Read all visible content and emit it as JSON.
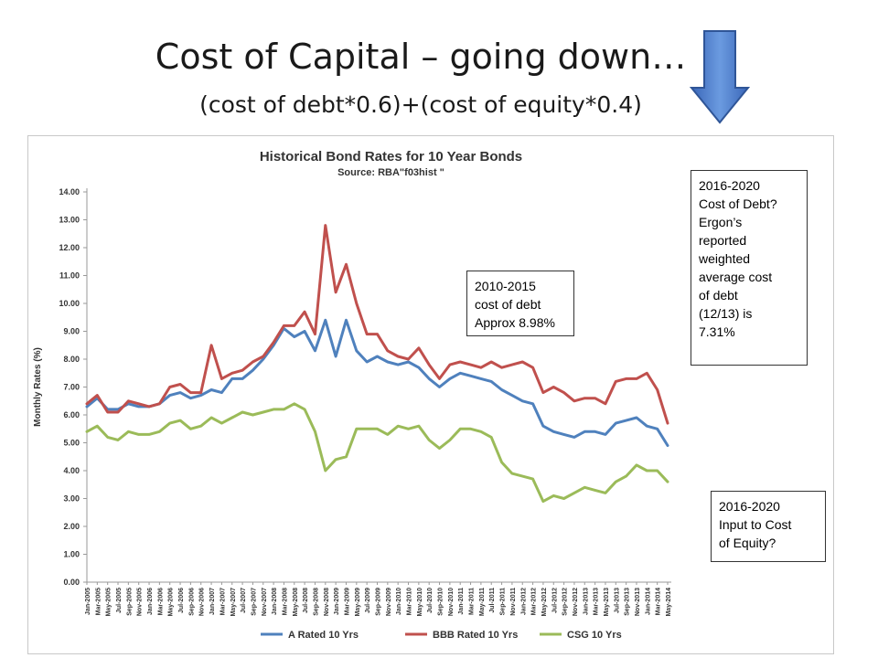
{
  "slide": {
    "title": "Cost of Capital – going down…",
    "subtitle": "(cost of debt*0.6)+(cost  of equity*0.4)"
  },
  "colors": {
    "a_rated": "#4f81bd",
    "bbb_rated": "#c0504d",
    "csg": "#9bbb59",
    "arrow": "#4472c4"
  },
  "icons": {
    "arrow": "down-arrow-icon"
  },
  "annotations": {
    "debt": "2010-2015\ncost of debt\nApprox 8.98%",
    "ergon": "2016-2020\nCost of Debt?\nErgon’s\nreported\nweighted\naverage cost\nof debt\n(12/13) is\n7.31%",
    "equity": "2016-2020\nInput to Cost\nof Equity?"
  },
  "chart_data": {
    "type": "line",
    "title": "Historical Bond Rates for 10 Year Bonds",
    "subtitle": "Source: RBA\"f03hist \"",
    "xlabel": "",
    "ylabel": "Monthly Rates (%)",
    "ylim": [
      0,
      14
    ],
    "y_ticks": [
      "0.00",
      "1.00",
      "2.00",
      "3.00",
      "4.00",
      "5.00",
      "6.00",
      "7.00",
      "8.00",
      "9.00",
      "10.00",
      "11.00",
      "12.00",
      "13.00",
      "14.00"
    ],
    "grid": false,
    "legend": "bottom",
    "x": [
      "Jan-2005",
      "Mar-2005",
      "May-2005",
      "Jul-2005",
      "Sep-2005",
      "Nov-2005",
      "Jan-2006",
      "Mar-2006",
      "May-2006",
      "Jul-2006",
      "Sep-2006",
      "Nov-2006",
      "Jan-2007",
      "Mar-2007",
      "May-2007",
      "Jul-2007",
      "Sep-2007",
      "Nov-2007",
      "Jan-2008",
      "Mar-2008",
      "May-2008",
      "Jul-2008",
      "Sep-2008",
      "Nov-2008",
      "Jan-2009",
      "Mar-2009",
      "May-2009",
      "Jul-2009",
      "Sep-2009",
      "Nov-2009",
      "Jan-2010",
      "Mar-2010",
      "May-2010",
      "Jul-2010",
      "Sep-2010",
      "Nov-2010",
      "Jan-2011",
      "Mar-2011",
      "May-2011",
      "Jul-2011",
      "Sep-2011",
      "Nov-2011",
      "Jan-2012",
      "Mar-2012",
      "May-2012",
      "Jul-2012",
      "Sep-2012",
      "Nov-2012",
      "Jan-2013",
      "Mar-2013",
      "May-2013",
      "Jul-2013",
      "Sep-2013",
      "Nov-2013",
      "Jan-2014",
      "Mar-2014",
      "May-2014"
    ],
    "series": [
      {
        "name": "A Rated 10 Yrs",
        "color": "#4f81bd",
        "values": [
          6.3,
          6.6,
          6.2,
          6.2,
          6.4,
          6.3,
          6.3,
          6.4,
          6.7,
          6.8,
          6.6,
          6.7,
          6.9,
          6.8,
          7.3,
          7.3,
          7.6,
          8.0,
          8.5,
          9.1,
          8.8,
          9.0,
          8.3,
          9.4,
          8.1,
          9.4,
          8.3,
          7.9,
          8.1,
          7.9,
          7.8,
          7.9,
          7.7,
          7.3,
          7.0,
          7.3,
          7.5,
          7.4,
          7.3,
          7.2,
          6.9,
          6.7,
          6.5,
          6.4,
          5.6,
          5.4,
          5.3,
          5.2,
          5.4,
          5.4,
          5.3,
          5.7,
          5.8,
          5.9,
          5.6,
          5.5,
          4.9
        ]
      },
      {
        "name": "BBB Rated 10 Yrs",
        "color": "#c0504d",
        "values": [
          6.4,
          6.7,
          6.1,
          6.1,
          6.5,
          6.4,
          6.3,
          6.4,
          7.0,
          7.1,
          6.8,
          6.8,
          8.5,
          7.3,
          7.5,
          7.6,
          7.9,
          8.1,
          8.6,
          9.2,
          9.2,
          9.7,
          8.9,
          12.8,
          10.4,
          11.4,
          10.0,
          8.9,
          8.9,
          8.3,
          8.1,
          8.0,
          8.4,
          7.8,
          7.3,
          7.8,
          7.9,
          7.8,
          7.7,
          7.9,
          7.7,
          7.8,
          7.9,
          7.7,
          6.8,
          7.0,
          6.8,
          6.5,
          6.6,
          6.6,
          6.4,
          7.2,
          7.3,
          7.3,
          7.5,
          6.9,
          5.7
        ]
      },
      {
        "name": "CSG 10 Yrs",
        "color": "#9bbb59",
        "values": [
          5.4,
          5.6,
          5.2,
          5.1,
          5.4,
          5.3,
          5.3,
          5.4,
          5.7,
          5.8,
          5.5,
          5.6,
          5.9,
          5.7,
          5.9,
          6.1,
          6.0,
          6.1,
          6.2,
          6.2,
          6.4,
          6.2,
          5.4,
          4.0,
          4.4,
          4.5,
          5.5,
          5.5,
          5.5,
          5.3,
          5.6,
          5.5,
          5.6,
          5.1,
          4.8,
          5.1,
          5.5,
          5.5,
          5.4,
          5.2,
          4.3,
          3.9,
          3.8,
          3.7,
          2.9,
          3.1,
          3.0,
          3.2,
          3.4,
          3.3,
          3.2,
          3.6,
          3.8,
          4.2,
          4.0,
          4.0,
          3.6
        ]
      }
    ]
  }
}
